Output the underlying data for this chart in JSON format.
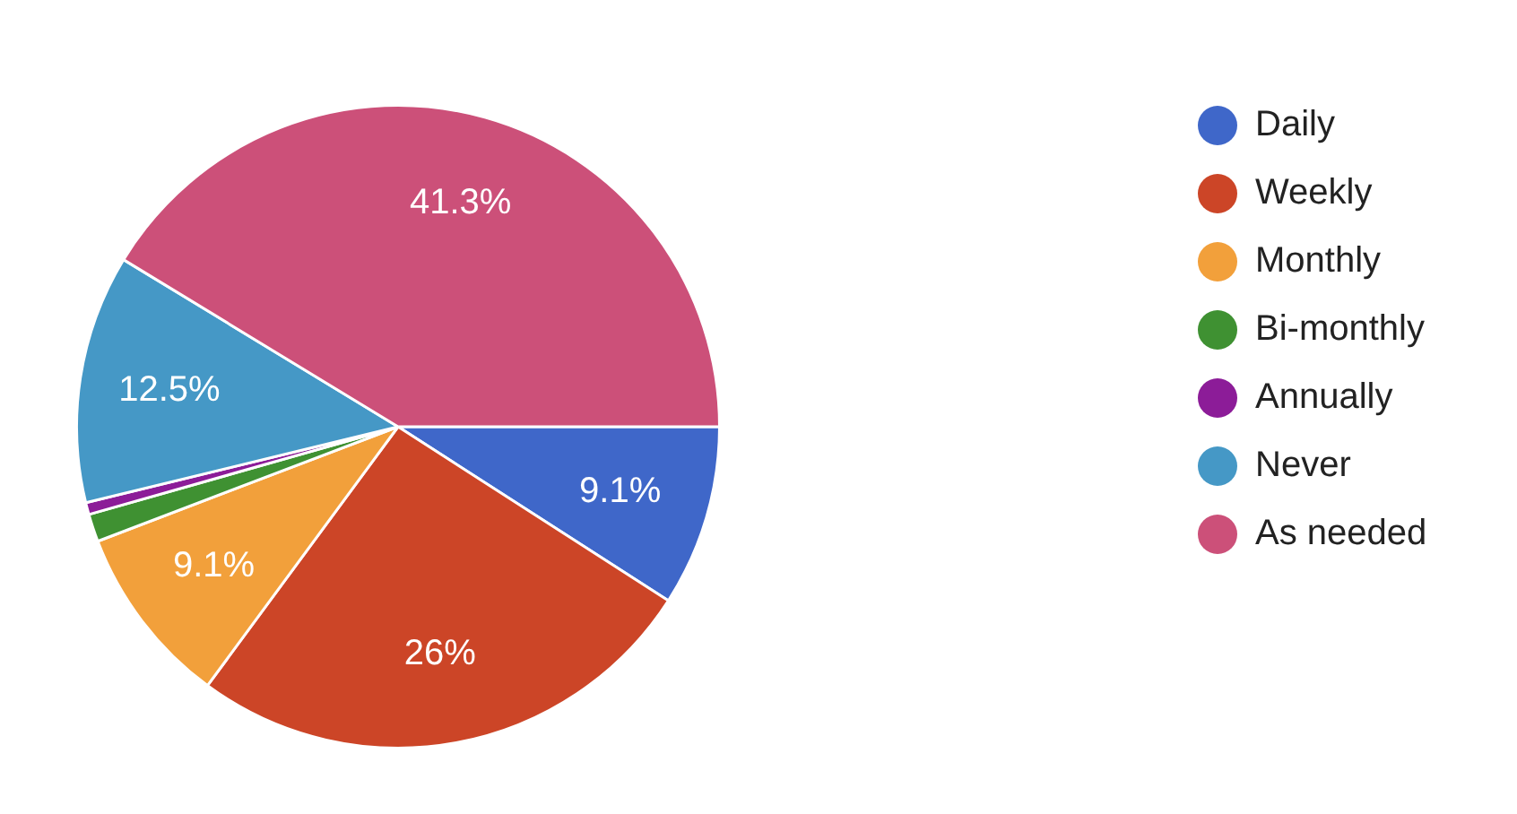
{
  "chart_data": {
    "type": "pie",
    "categories": [
      "Daily",
      "Weekly",
      "Monthly",
      "Bi-monthly",
      "Annually",
      "Never",
      "As needed"
    ],
    "values": [
      9.1,
      26,
      9.1,
      1.4,
      0.6,
      12.5,
      41.3
    ],
    "colors": [
      "#3f67c9",
      "#cc4527",
      "#f2a03b",
      "#3f9132",
      "#8c1c98",
      "#4598c6",
      "#cc5079"
    ],
    "value_labels": [
      "9.1%",
      "26%",
      "9.1%",
      null,
      null,
      "12.5%",
      "41.3%"
    ],
    "legend": "right"
  }
}
